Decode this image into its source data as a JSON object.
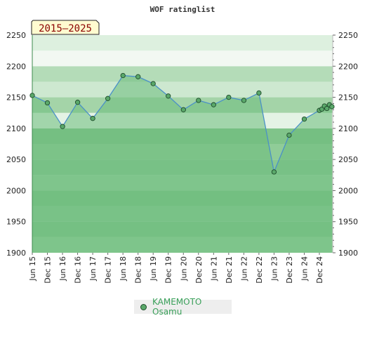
{
  "chart_data": {
    "type": "area",
    "title": "WOF ratinglist",
    "period_badge": "2015–2025",
    "ylim": [
      1900,
      2250
    ],
    "y_ticks": [
      1900,
      1950,
      2000,
      2050,
      2100,
      2150,
      2200,
      2250
    ],
    "x_tick_labels": [
      "Jun 15",
      "Dec 15",
      "Jun 16",
      "Dec 16",
      "Jun 17",
      "Dec 17",
      "Jun 18",
      "Dec 18",
      "Jun 19",
      "Dec 19",
      "Jun 20",
      "Dec 20",
      "Jun 21",
      "Dec 21",
      "Jun 22",
      "Dec 22",
      "Jun 23",
      "Dec 23",
      "Jun 24",
      "Dec 24"
    ],
    "series": [
      {
        "name": "KAMEMOTO Osamu",
        "color": "#5aa86a",
        "points": [
          {
            "x": "2015-06",
            "y": 2153
          },
          {
            "x": "2015-12",
            "y": 2141
          },
          {
            "x": "2016-06",
            "y": 2103
          },
          {
            "x": "2016-12",
            "y": 2142
          },
          {
            "x": "2017-06",
            "y": 2116
          },
          {
            "x": "2017-12",
            "y": 2148
          },
          {
            "x": "2018-06",
            "y": 2185
          },
          {
            "x": "2018-12",
            "y": 2183
          },
          {
            "x": "2019-06",
            "y": 2172
          },
          {
            "x": "2019-12",
            "y": 2152
          },
          {
            "x": "2020-06",
            "y": 2130
          },
          {
            "x": "2020-12",
            "y": 2145
          },
          {
            "x": "2021-06",
            "y": 2138
          },
          {
            "x": "2021-12",
            "y": 2150
          },
          {
            "x": "2022-06",
            "y": 2145
          },
          {
            "x": "2022-12",
            "y": 2157
          },
          {
            "x": "2023-06",
            "y": 2030
          },
          {
            "x": "2023-12",
            "y": 2089
          },
          {
            "x": "2024-06",
            "y": 2115
          },
          {
            "x": "2024-12",
            "y": 2129
          },
          {
            "x": "2025-01",
            "y": 2131
          },
          {
            "x": "2025-02",
            "y": 2136
          },
          {
            "x": "2025-03",
            "y": 2132
          },
          {
            "x": "2025-04",
            "y": 2138
          },
          {
            "x": "2025-05",
            "y": 2135
          }
        ]
      }
    ],
    "legend_position": "bottom-center",
    "colors": {
      "line": "#4a90c8",
      "fill": "#6cbc7c",
      "marker": "#5aa86a",
      "marker_edge": "#1e4a2a",
      "badge_bg": "#fffbd0",
      "badge_text": "#8b0000"
    }
  }
}
